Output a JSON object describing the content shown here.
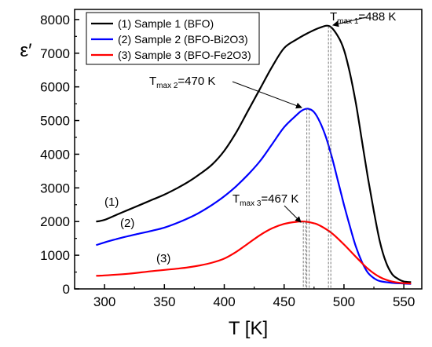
{
  "chart_data": {
    "type": "line",
    "xlabel": "T [K]",
    "ylabel": "ε′",
    "xlim": [
      275,
      565
    ],
    "ylim": [
      0,
      8300
    ],
    "xticks": [
      300,
      350,
      400,
      450,
      500,
      550
    ],
    "yticks": [
      0,
      1000,
      2000,
      3000,
      4000,
      5000,
      6000,
      7000,
      8000
    ],
    "grid": false,
    "legend_position": "top-left",
    "series": [
      {
        "name": "(1) Sample 1 (BFO)",
        "color": "#000000",
        "curve_label": "(1)",
        "x": [
          293,
          300,
          310,
          320,
          330,
          340,
          350,
          360,
          370,
          380,
          390,
          400,
          410,
          420,
          430,
          440,
          450,
          460,
          470,
          480,
          488,
          495,
          500,
          505,
          510,
          515,
          520,
          525,
          530,
          535,
          540,
          545,
          550,
          556
        ],
        "y": [
          2000,
          2050,
          2200,
          2350,
          2500,
          2650,
          2800,
          2980,
          3180,
          3420,
          3700,
          4100,
          4650,
          5300,
          5950,
          6600,
          7150,
          7400,
          7600,
          7760,
          7800,
          7500,
          7100,
          6400,
          5500,
          4400,
          3300,
          2300,
          1400,
          800,
          450,
          300,
          220,
          200
        ]
      },
      {
        "name": "(2) Sample 2 (BFO-Bi2O3)",
        "color": "#0000ff",
        "curve_label": "(2)",
        "x": [
          293,
          300,
          310,
          320,
          330,
          340,
          350,
          360,
          370,
          380,
          390,
          400,
          410,
          420,
          430,
          440,
          450,
          460,
          465,
          470,
          475,
          480,
          485,
          490,
          495,
          500,
          505,
          510,
          515,
          520,
          525,
          530,
          540,
          550,
          556
        ],
        "y": [
          1300,
          1380,
          1480,
          1570,
          1650,
          1730,
          1820,
          1950,
          2100,
          2280,
          2500,
          2750,
          3050,
          3400,
          3800,
          4300,
          4800,
          5150,
          5300,
          5350,
          5250,
          4950,
          4500,
          3900,
          3200,
          2500,
          1850,
          1250,
          800,
          480,
          320,
          230,
          180,
          160,
          150
        ]
      },
      {
        "name": "(3) Sample 3 (BFO-Fe2O3)",
        "color": "#ff0000",
        "curve_label": "(3)",
        "x": [
          293,
          300,
          320,
          340,
          360,
          370,
          380,
          390,
          400,
          410,
          420,
          430,
          440,
          450,
          460,
          467,
          475,
          480,
          490,
          500,
          510,
          520,
          530,
          540,
          550,
          556
        ],
        "y": [
          390,
          400,
          450,
          530,
          600,
          640,
          700,
          780,
          900,
          1100,
          1350,
          1600,
          1800,
          1930,
          1990,
          2000,
          1950,
          1880,
          1650,
          1320,
          950,
          600,
          350,
          220,
          170,
          160
        ]
      }
    ],
    "annotations": [
      {
        "base": "T",
        "sub": "max 1",
        "tail": "=488 K",
        "x": 488,
        "y": 7800
      },
      {
        "base": "T",
        "sub": "max 2",
        "tail": "=470 K",
        "x": 470,
        "y": 5350
      },
      {
        "base": "T",
        "sub": "max 3",
        "tail": "=467 K",
        "x": 467,
        "y": 2000
      }
    ]
  }
}
